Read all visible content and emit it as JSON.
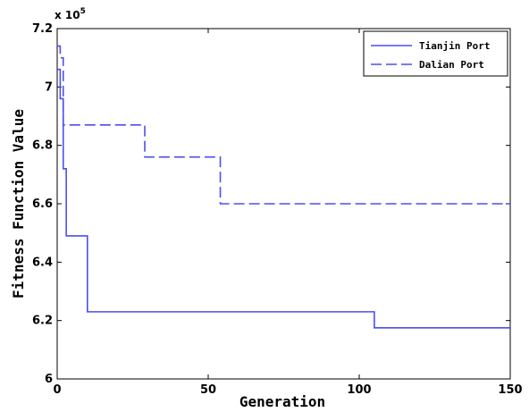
{
  "chart_data": {
    "type": "line",
    "title": "",
    "xlabel": "Generation",
    "ylabel": "Fitness Function Value",
    "y_multiplier_label": "x 10",
    "y_multiplier_exponent": "5",
    "xlim": [
      0,
      150
    ],
    "ylim": [
      6.0,
      7.2
    ],
    "x_ticks": [
      0,
      50,
      100,
      150
    ],
    "x_tick_labels": [
      "0",
      "50",
      "100",
      "150"
    ],
    "y_ticks": [
      6.0,
      6.2,
      6.4,
      6.6,
      6.8,
      7.0,
      7.2
    ],
    "y_tick_labels": [
      "6",
      "6.2",
      "6.4",
      "6.6",
      "6.8",
      "7",
      "7.2"
    ],
    "grid": false,
    "legend_position": "top-right",
    "line_color": "#4a4ef2",
    "series": [
      {
        "name": "Tianjin Port",
        "style": "solid",
        "step": true,
        "x": [
          0,
          1,
          2,
          3,
          9,
          10,
          104,
          105,
          150
        ],
        "y": [
          7.06,
          6.96,
          6.72,
          6.49,
          6.49,
          6.23,
          6.23,
          6.175,
          6.175
        ]
      },
      {
        "name": "Dalian Port",
        "style": "dashed",
        "step": true,
        "x": [
          0,
          1,
          2,
          28,
          29,
          53,
          54,
          150
        ],
        "y": [
          7.14,
          7.1,
          6.87,
          6.87,
          6.76,
          6.76,
          6.6,
          6.6
        ]
      }
    ]
  }
}
